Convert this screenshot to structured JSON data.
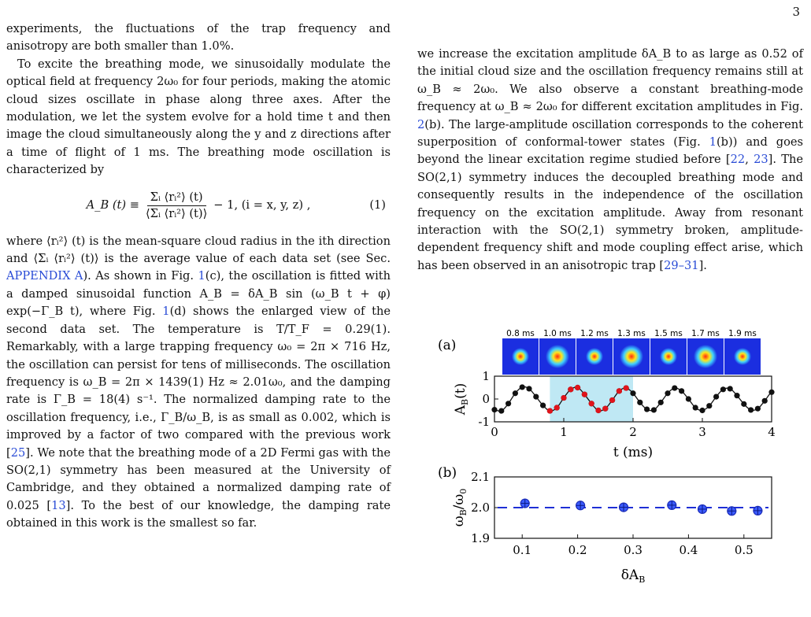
{
  "page_number": "3",
  "left_column": {
    "p1": "experiments, the fluctuations of the trap frequency and anisotropy are both smaller than 1.0%.",
    "p2": "To excite the breathing mode, we sinusoidally modulate the optical field at frequency 2ω₀ for four periods, making the atomic cloud sizes oscillate in phase along three axes. After the modulation, we let the system evolve for a hold time t and then image the cloud simultaneously along the y and z directions after a time of flight of 1 ms. The breathing mode oscillation is characterized by",
    "eq_lhs": "A_B (t) ≡",
    "eq_num_text": "Σᵢ ⟨rᵢ²⟩ (t)",
    "eq_den_text": "⟨Σᵢ ⟨rᵢ²⟩ (t)⟩",
    "eq_rhs": "− 1,   (i = x, y, z) ,",
    "eq_number": "(1)",
    "p3": "where ⟨rᵢ²⟩ (t) is the mean-square cloud radius in the ith direction and ⟨Σᵢ ⟨rᵢ²⟩ (t)⟩ is the average value of each data set (see Sec.",
    "p3_link": "APPENDIX A",
    "p3_b": "). As shown in Fig.",
    "p3_fig1": "1",
    "p3_c": "(c), the oscillation is fitted with a damped sinusoidal function A_B = δA_B sin (ω_B t + φ) exp(−Γ_B t), where Fig.",
    "p3_fig2": "1",
    "p3_d": "(d) shows the enlarged view of the second data set. The temperature is T/T_F = 0.29(1). Remarkably, with a large trapping frequency ω₀ = 2π × 716 Hz, the oscillation can persist for tens of milliseconds. The oscillation frequency is ω_B = 2π × 1439(1) Hz ≈ 2.01ω₀, and the damping rate is Γ_B = 18(4) s⁻¹. The normalized damping rate to the oscillation frequency, i.e., Γ_B/ω_B, is as small as 0.002, which is improved by a factor of two compared with the previous work [",
    "p3_ref25": "25",
    "p3_e": "]. We note that the breathing mode of a 2D Fermi gas with the SO(2,1) symmetry has been measured at the University of Cambridge, and they obtained a normalized damping rate of 0.025 [",
    "p3_ref13": "13",
    "p3_f": "]. To the best of our knowledge, the damping rate obtained in this work is the smallest so far."
  },
  "right_column": {
    "p1": "we increase the excitation amplitude δA_B to as large as 0.52 of the initial cloud size and the oscillation frequency remains still at ω_B ≈ 2ω₀. We also observe a constant breathing-mode frequency at ω_B ≈ 2ω₀ for different excitation amplitudes in Fig.",
    "p1_fig": "2",
    "p1_b": "(b). The large-amplitude oscillation corresponds to the coherent superposition of conformal-tower states (Fig.",
    "p1_fig1": "1",
    "p1_c": "(b)) and goes beyond the linear excitation regime studied before [",
    "p1_ref22": "22",
    "p1_sep": ", ",
    "p1_ref23": "23",
    "p1_d": "]. The SO(2,1) symmetry induces the decoupled breathing mode and consequently results in the independence of the oscillation frequency on the excitation amplitude. Away from resonant interaction with the SO(2,1) symmetry broken, amplitude-dependent frequency shift and mode coupling effect arise, which has been observed in an anisotropic trap [",
    "p1_ref29": "29–31",
    "p1_e": "]."
  },
  "figure": {
    "panel_a_label": "(a)",
    "panel_b_label": "(b)",
    "image_times": [
      "0.8 ms",
      "1.0 ms",
      "1.2 ms",
      "1.3 ms",
      "1.5 ms",
      "1.7 ms",
      "1.9 ms"
    ],
    "colors": {
      "data": "#111111",
      "highlight_points": "#e0141b",
      "shade": "#bfe8f4",
      "fit_b": "#1f2fd6",
      "marker_b": "#3b5bff"
    }
  },
  "chart_data": [
    {
      "type": "scatter",
      "panel": "(a)",
      "xlabel": "t (ms)",
      "ylabel": "A_B(t)",
      "xlim": [
        0,
        4
      ],
      "ylim": [
        -1,
        1
      ],
      "xticks": [
        0,
        1,
        2,
        3,
        4
      ],
      "yticks": [
        -1,
        0,
        1
      ],
      "shaded_x_range": [
        0.8,
        2.0
      ],
      "series": [
        {
          "x": [
            0.0,
            0.1,
            0.2,
            0.3,
            0.4,
            0.5,
            0.6,
            0.7,
            0.8,
            0.9,
            1.0,
            1.1,
            1.2,
            1.3,
            1.4,
            1.5,
            1.6,
            1.7,
            1.8,
            1.9,
            2.0,
            2.1,
            2.2,
            2.3,
            2.4,
            2.5,
            2.6,
            2.7,
            2.8,
            2.9,
            3.0,
            3.1,
            3.2,
            3.3,
            3.4,
            3.5,
            3.6,
            3.7,
            3.8,
            3.9,
            4.0
          ],
          "y": [
            -0.47,
            -0.52,
            -0.2,
            0.25,
            0.52,
            0.45,
            0.1,
            -0.28,
            -0.52,
            -0.38,
            0.05,
            0.42,
            0.5,
            0.2,
            -0.2,
            -0.5,
            -0.42,
            -0.05,
            0.35,
            0.48,
            0.25,
            -0.15,
            -0.45,
            -0.48,
            -0.15,
            0.25,
            0.48,
            0.35,
            0.0,
            -0.38,
            -0.5,
            -0.3,
            0.1,
            0.42,
            0.45,
            0.15,
            -0.22,
            -0.48,
            -0.42,
            -0.08,
            0.3
          ]
        },
        {
          "x": [
            0.8,
            0.9,
            1.0,
            1.1,
            1.2,
            1.3,
            1.4,
            1.5,
            1.6,
            1.7,
            1.8,
            1.9
          ],
          "y": [
            -0.52,
            -0.38,
            0.05,
            0.42,
            0.5,
            0.2,
            -0.2,
            -0.5,
            -0.42,
            -0.05,
            0.35,
            0.48
          ]
        }
      ]
    },
    {
      "type": "scatter",
      "panel": "(b)",
      "xlabel": "δA_B",
      "ylabel": "ω_B/ω₀",
      "xlim": [
        0.05,
        0.55
      ],
      "ylim": [
        1.9,
        2.1
      ],
      "xticks": [
        0.1,
        0.2,
        0.3,
        0.4,
        0.5
      ],
      "yticks": [
        1.9,
        2.0,
        2.1
      ],
      "reference_line_y": 2.0,
      "x": [
        0.105,
        0.205,
        0.283,
        0.37,
        0.425,
        0.478,
        0.525
      ],
      "y": [
        2.014,
        2.007,
        2.001,
        2.008,
        1.995,
        1.989,
        1.99
      ]
    }
  ]
}
